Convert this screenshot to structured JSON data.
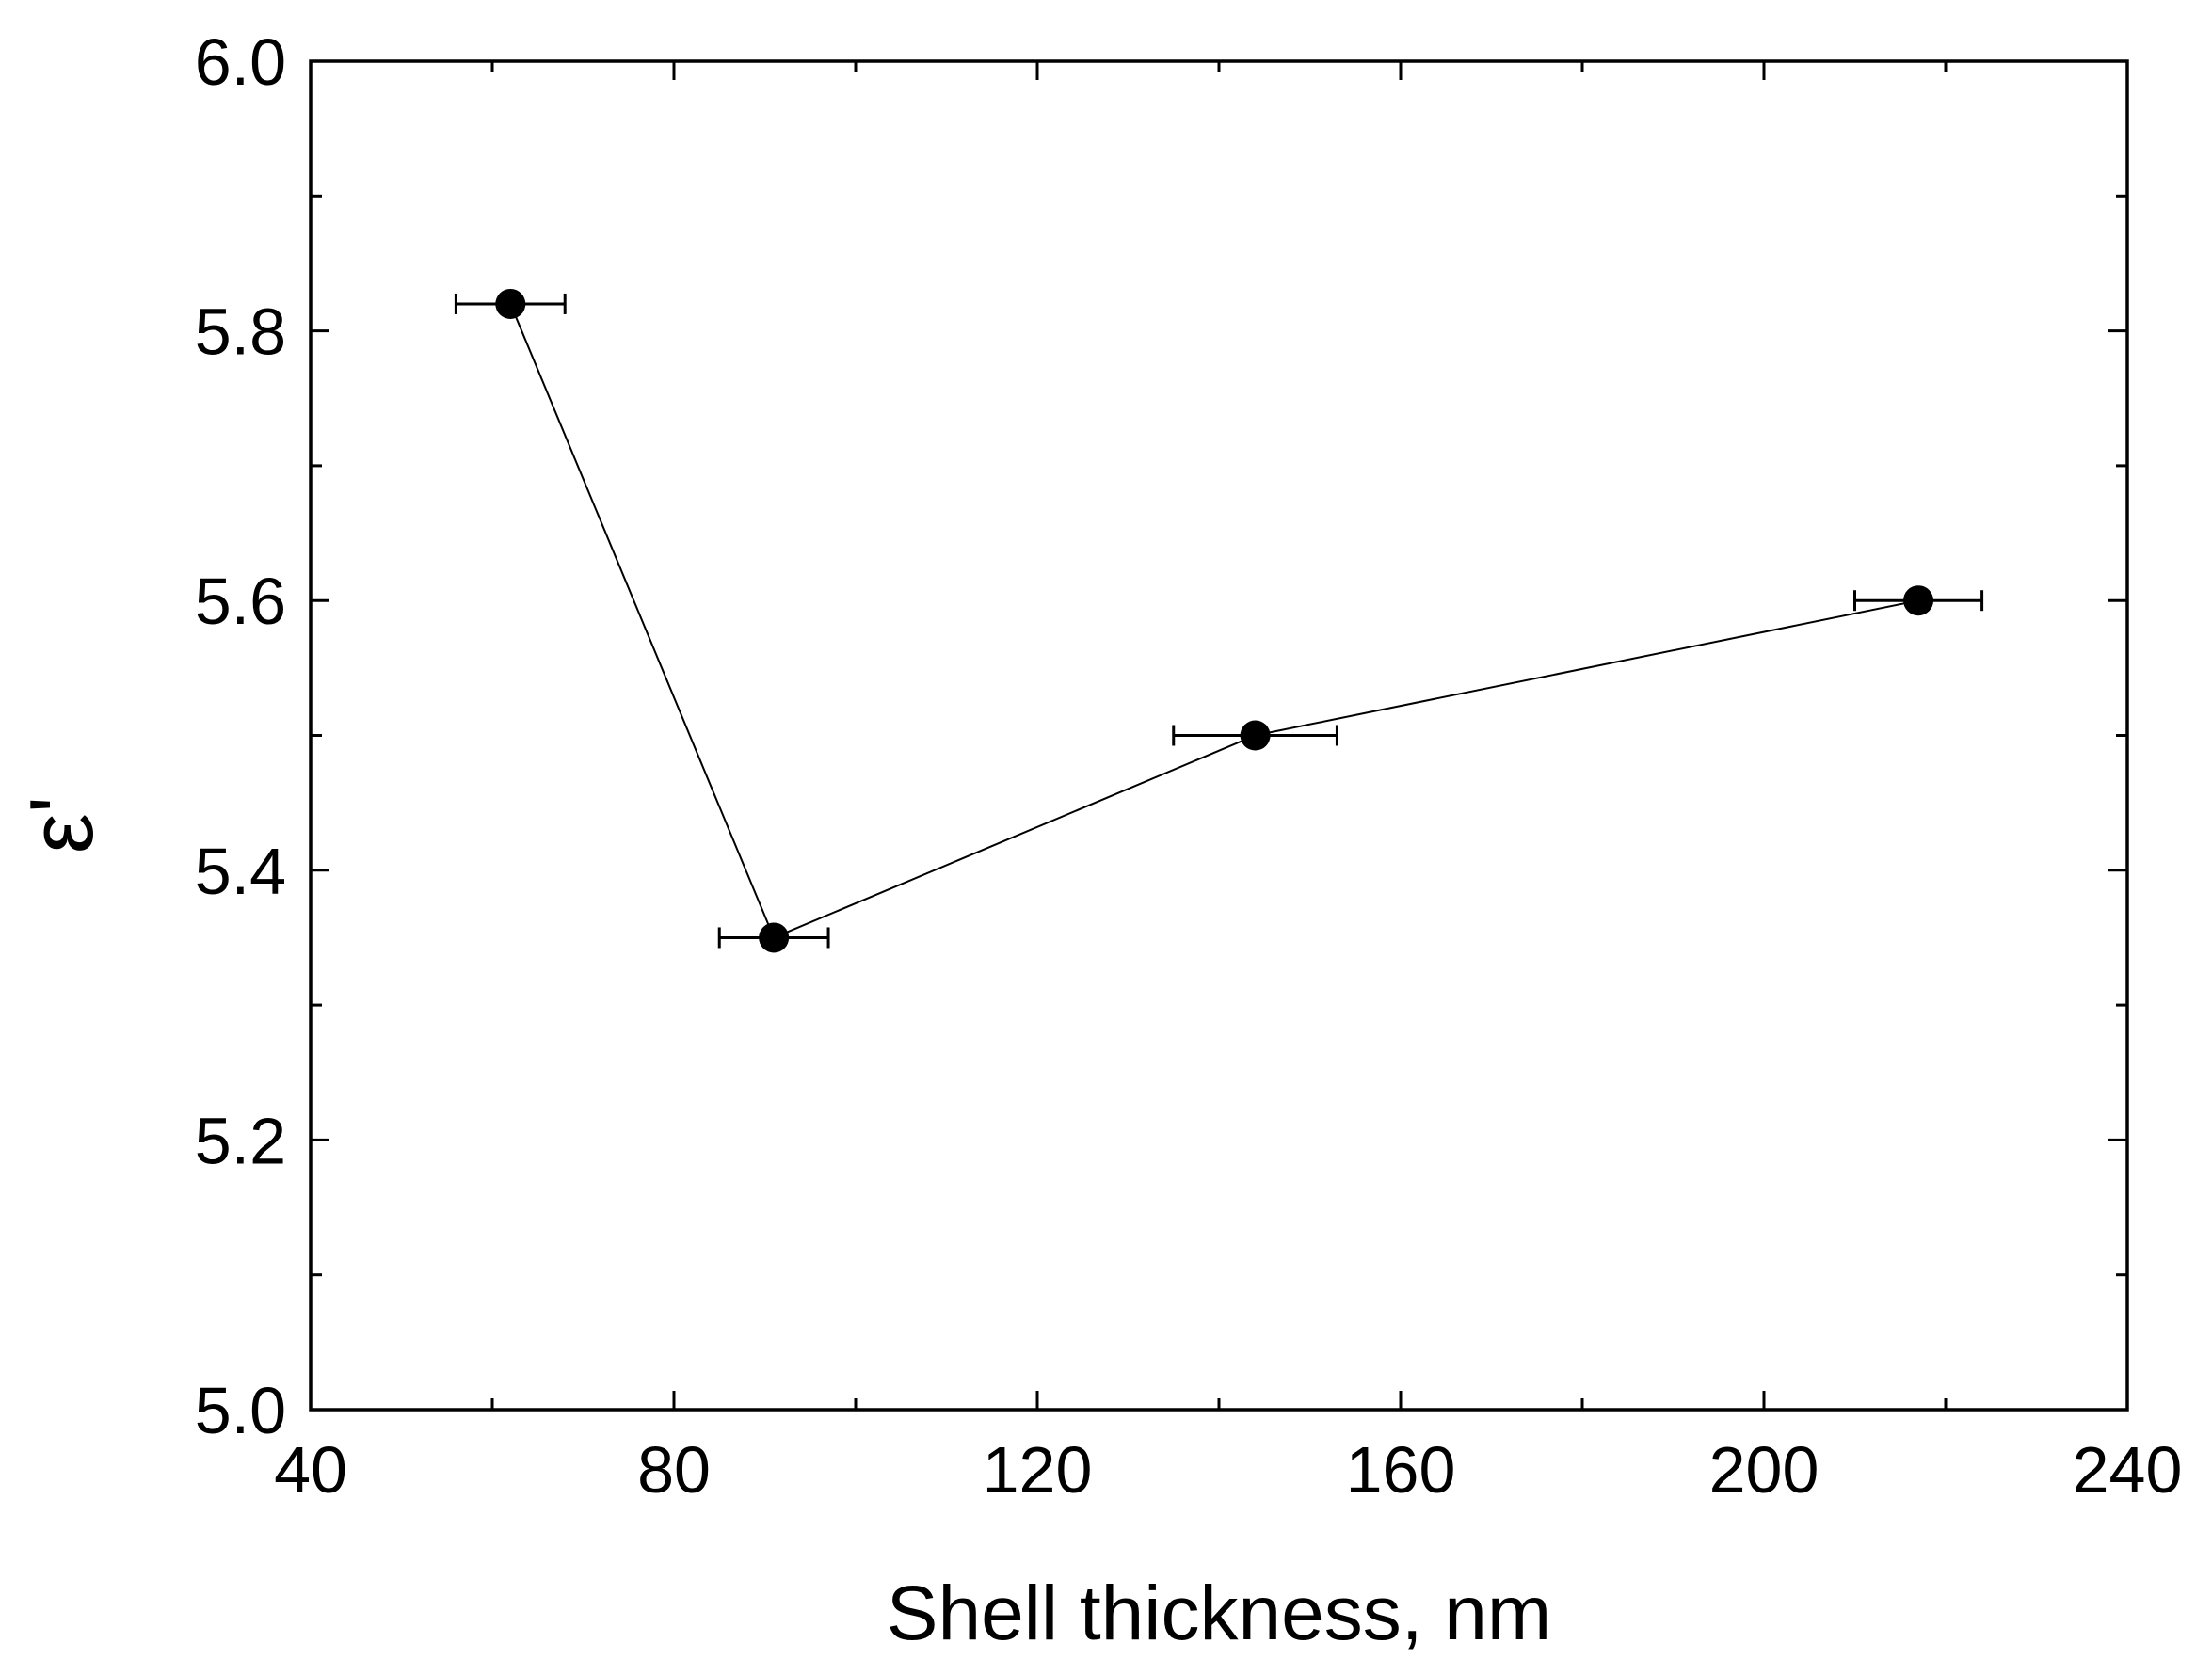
{
  "chart_data": {
    "type": "line",
    "title": "",
    "xlabel": "Shell thickness, nm",
    "ylabel": "ε'",
    "xlim": [
      40,
      240
    ],
    "ylim": [
      5.0,
      6.0
    ],
    "xticks": [
      40,
      80,
      120,
      160,
      200,
      240
    ],
    "yticks": [
      5.0,
      5.2,
      5.4,
      5.6,
      5.8,
      6.0
    ],
    "xtick_labels": [
      "40",
      "80",
      "120",
      "160",
      "200",
      "240"
    ],
    "ytick_labels": [
      "5.0",
      "5.2",
      "5.4",
      "5.6",
      "5.8",
      "6.0"
    ],
    "x_minor_step": 20,
    "y_minor_step": 0.1,
    "grid": false,
    "series": [
      {
        "name": "ε'",
        "marker": "filled-circle",
        "x": [
          62,
          91,
          144,
          217
        ],
        "y": [
          5.82,
          5.35,
          5.5,
          5.6
        ],
        "x_err": [
          6,
          6,
          9,
          7
        ]
      }
    ],
    "colors": {
      "line": "#000000",
      "marker": "#000000",
      "axes": "#000000"
    }
  }
}
